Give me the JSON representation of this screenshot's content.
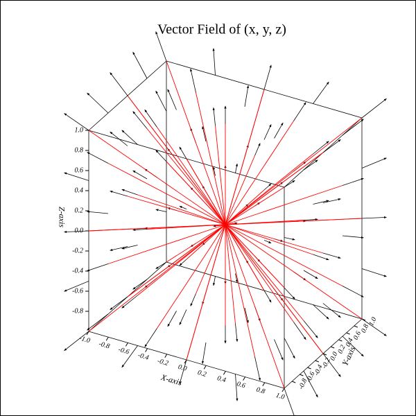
{
  "chart_data": {
    "type": "quiver3d",
    "title": "Vector Field of (x, y, z)",
    "xlabel": "X-axis",
    "ylabel": "Y-axis",
    "zlabel": "Z-axis",
    "xlim": [
      -1,
      1
    ],
    "ylim": [
      -1,
      1
    ],
    "zlim": [
      -1,
      1
    ],
    "xticks": [
      {
        "value": -1,
        "label": "-1.0"
      },
      {
        "value": -0.8,
        "label": "-0.8"
      },
      {
        "value": -0.6,
        "label": "-0.6"
      },
      {
        "value": -0.4,
        "label": "-0.4"
      },
      {
        "value": -0.2,
        "label": "-0.2"
      },
      {
        "value": 0,
        "label": "0.0"
      },
      0.2,
      0.4,
      0.6,
      0.8,
      {
        "value": 1,
        "label": "1.0"
      }
    ],
    "yticks": [
      {
        "value": -0.8,
        "label": "-0.8"
      },
      {
        "value": -0.6,
        "label": "-0.6"
      },
      {
        "value": -0.4,
        "label": "-0.4"
      },
      {
        "value": -0.2,
        "label": "-0.2"
      },
      {
        "value": 0,
        "label": "0.0"
      },
      0.2,
      0.4,
      0.6,
      0.8,
      {
        "value": 1,
        "label": "1.0"
      }
    ],
    "zticks": [
      {
        "value": -0.8,
        "label": "-0.8"
      },
      {
        "value": -0.6,
        "label": "-0.6"
      },
      {
        "value": -0.4,
        "label": "-0.4"
      },
      {
        "value": -0.2,
        "label": "-0.2"
      },
      {
        "value": 0,
        "label": "0.0"
      },
      0.2,
      0.4,
      0.6,
      0.8,
      {
        "value": 1,
        "label": "1.0"
      }
    ],
    "grid": {
      "x": [
        -1,
        -0.5,
        0,
        0.5,
        1
      ],
      "y": [
        -1,
        -0.5,
        0,
        0.5,
        1
      ],
      "z": [
        -1,
        -0.5,
        0,
        0.5,
        1
      ]
    },
    "color": "#000000",
    "streamline_color": "#ff0000"
  }
}
